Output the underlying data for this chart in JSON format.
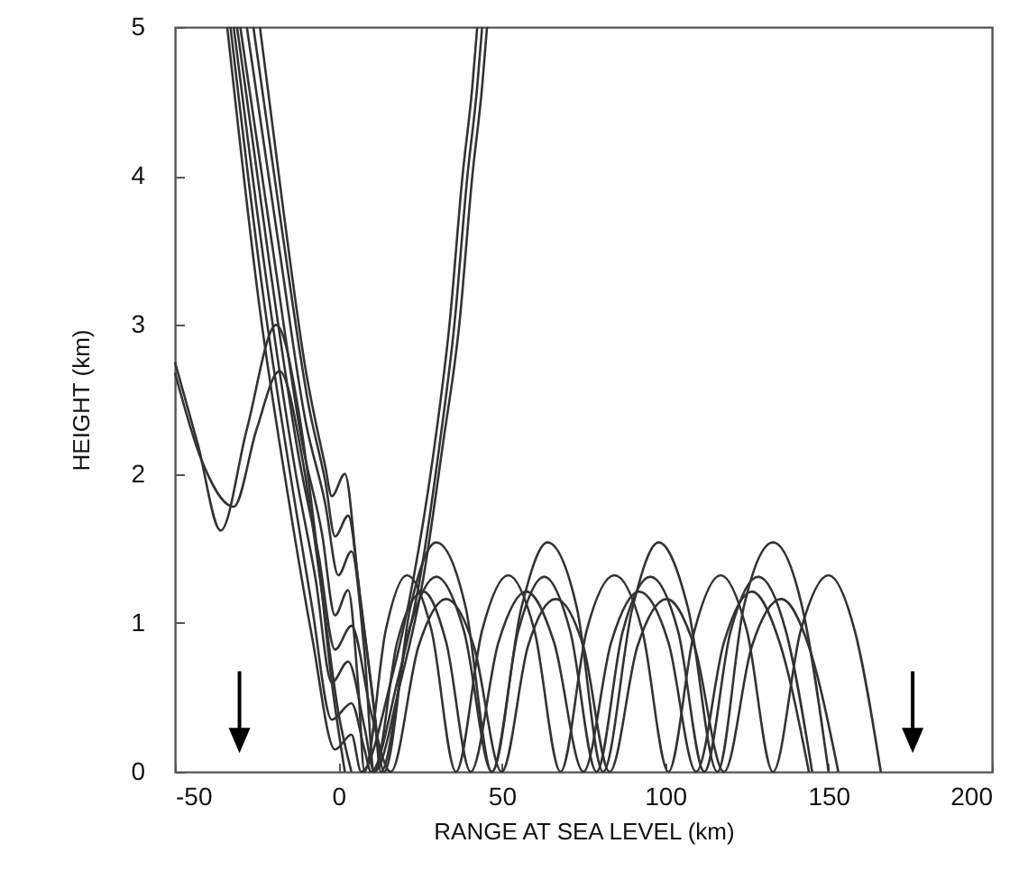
{
  "chart_data": {
    "type": "line",
    "xlabel": "RANGE AT SEA LEVEL (km)",
    "ylabel": "HEIGHT (km)",
    "xlim": [
      -50,
      200
    ],
    "ylim": [
      0,
      5
    ],
    "xticks": [
      -50,
      0,
      50,
      100,
      150,
      200
    ],
    "yticks": [
      0,
      1,
      2,
      3,
      4,
      5
    ],
    "grid": false,
    "series": [
      {
        "color": "#333333",
        "x": [
          -50,
          -43,
          -36,
          -28,
          -19,
          -12,
          -6,
          -2,
          2
        ],
        "values": [
          2.75,
          2.2,
          1.62,
          2.3,
          3.0,
          2.4,
          1.4,
          0.6,
          0
        ]
      },
      {
        "color": "#333333",
        "x": [
          -50,
          -42,
          -32,
          -25,
          -18,
          -11,
          -5,
          0,
          4
        ],
        "values": [
          2.68,
          2.1,
          1.78,
          2.3,
          2.69,
          2.1,
          1.2,
          0.4,
          0
        ]
      },
      {
        "color": "#333333",
        "x": [
          -24,
          -17,
          -10,
          -4,
          -2,
          2,
          6,
          10,
          14,
          22,
          30,
          39,
          47,
          56,
          64,
          73,
          81,
          90,
          98,
          107,
          116,
          124,
          133,
          142,
          150
        ],
        "values": [
          5,
          3.8,
          2.7,
          2.05,
          1.85,
          2.0,
          1.3,
          0.6,
          0,
          1.1,
          1.54,
          1.1,
          0,
          1.1,
          1.54,
          1.1,
          0,
          1.1,
          1.54,
          1.1,
          0,
          1.1,
          1.54,
          1.1,
          0
        ]
      },
      {
        "color": "#333333",
        "x": [
          -26,
          -17,
          -9,
          -4,
          -1,
          3,
          7,
          11,
          13,
          21.5,
          30,
          38.5,
          47,
          55,
          63,
          71,
          79,
          87,
          95.5,
          104,
          112,
          120,
          128.5,
          137,
          145
        ],
        "values": [
          5,
          3.6,
          2.45,
          1.95,
          1.58,
          1.72,
          1.1,
          0.4,
          0,
          0.94,
          1.31,
          0.94,
          0,
          0.94,
          1.31,
          0.94,
          0,
          0.94,
          1.31,
          0.94,
          0,
          0.94,
          1.31,
          0.94,
          0
        ]
      },
      {
        "color": "#333333",
        "x": [
          -28,
          -18,
          -10,
          -4,
          0,
          4,
          8,
          11,
          18,
          26,
          33,
          40.5,
          49,
          57.5,
          66,
          75,
          83.5,
          92,
          101,
          109.5,
          118,
          126.5,
          135,
          144
        ],
        "values": [
          5,
          3.5,
          2.35,
          1.8,
          1.32,
          1.48,
          0.8,
          0,
          0.87,
          1.21,
          0.87,
          0,
          0.87,
          1.21,
          0.87,
          0,
          0.87,
          1.21,
          0.87,
          0,
          0.87,
          1.21,
          0.87,
          0
        ]
      },
      {
        "color": "#333333",
        "x": [
          -30,
          -20,
          -11,
          -5,
          -1,
          3,
          6,
          8,
          14.5,
          21,
          28.5,
          36,
          44,
          52,
          60,
          68,
          76,
          84.5,
          93,
          101,
          109,
          117,
          125,
          133,
          141.5,
          150,
          158,
          166
        ],
        "values": [
          5,
          3.5,
          2.2,
          1.6,
          1.05,
          1.22,
          0.6,
          0,
          0.95,
          1.32,
          0.95,
          0,
          0.95,
          1.32,
          0.95,
          0,
          0.95,
          1.32,
          0.95,
          0,
          0.95,
          1.32,
          0.95,
          0,
          0.95,
          1.32,
          0.95,
          0
        ]
      },
      {
        "color": "#333333",
        "x": [
          -31,
          -21,
          -12,
          -6,
          -1,
          4,
          10,
          16,
          24.5,
          33,
          41.5,
          50,
          58,
          66.5,
          75,
          83,
          91.5,
          100.5,
          109,
          118,
          126.5,
          135.5,
          144,
          153
        ],
        "values": [
          5,
          3.4,
          2.1,
          1.45,
          0.82,
          0.98,
          0.4,
          0,
          0.84,
          1.16,
          0.84,
          0,
          0.84,
          1.16,
          0.84,
          0,
          0.84,
          1.16,
          0.84,
          0,
          0.84,
          1.16,
          0.84,
          0
        ]
      },
      {
        "color": "#333333",
        "x": [
          -32,
          -22,
          -13,
          -7,
          -2,
          3,
          8,
          11,
          19,
          26,
          32,
          37,
          41,
          44,
          45.5
        ],
        "values": [
          5,
          3.3,
          2.0,
          1.3,
          0.6,
          0.74,
          0.3,
          0,
          0.6,
          1.3,
          2.2,
          3.0,
          4.0,
          4.6,
          5
        ]
      },
      {
        "color": "#333333",
        "x": [
          -33,
          -23,
          -14,
          -8,
          -2,
          4,
          8,
          10,
          18,
          25,
          31,
          35.5,
          39.5,
          42.5,
          44
        ],
        "values": [
          5,
          3.2,
          1.9,
          1.1,
          0.35,
          0.46,
          0.15,
          0,
          0.6,
          1.3,
          2.2,
          3.0,
          4.0,
          4.6,
          5
        ]
      },
      {
        "color": "#333333",
        "x": [
          -34,
          -24,
          -15,
          -8,
          -1,
          4,
          7,
          16,
          23,
          29.5,
          34,
          38,
          41,
          42.5
        ],
        "values": [
          5,
          3.1,
          1.8,
          0.9,
          0.15,
          0.25,
          0,
          0.6,
          1.3,
          2.2,
          3.0,
          4.0,
          4.6,
          5
        ]
      }
    ]
  }
}
